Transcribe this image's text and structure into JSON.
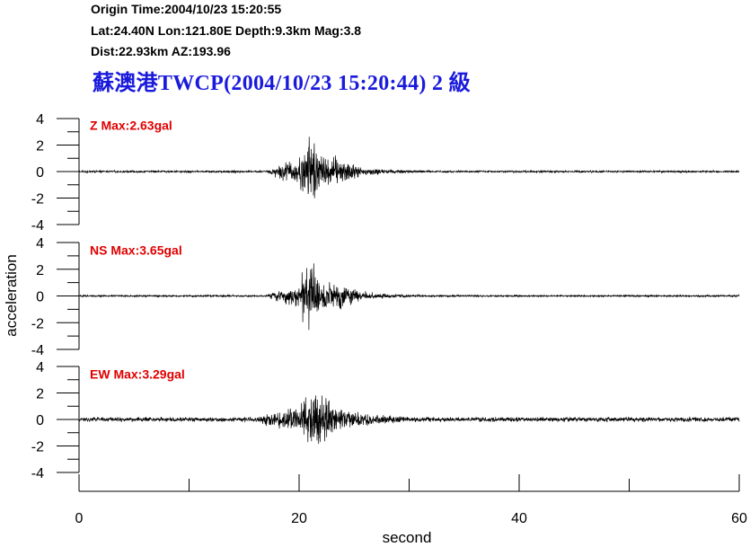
{
  "header": {
    "origin_line": "Origin Time:2004/10/23 15:20:55",
    "location_line": "Lat:24.40N  Lon:121.80E  Depth:9.3km  Mag:3.8",
    "dist_line": "Dist:22.93km  AZ:193.96",
    "station_title": "蘇澳港TWCP(2004/10/23 15:20:44)  2 級"
  },
  "chart_data": {
    "type": "line",
    "xlabel": "second",
    "ylabel": "acceleration",
    "xlim": [
      0,
      60
    ],
    "x_ticks": [
      "0",
      "20",
      "40",
      "60"
    ],
    "ylim": [
      -4,
      4
    ],
    "y_ticks": [
      "4",
      "2",
      "0",
      "-2",
      "-4"
    ],
    "channels": [
      {
        "name": "Z Max:2.63gal",
        "peak": 2.63,
        "noise": 0.09,
        "bursts": [
          [
            17,
            26,
            1.2
          ],
          [
            20,
            22,
            1.9
          ]
        ]
      },
      {
        "name": "NS Max:3.65gal",
        "peak": 3.65,
        "noise": 0.08,
        "bursts": [
          [
            17,
            26,
            1.0
          ],
          [
            20,
            22,
            2.2
          ]
        ]
      },
      {
        "name": "EW Max:3.29gal",
        "peak": 3.29,
        "noise": 0.22,
        "bursts": [
          [
            16,
            26,
            0.9
          ],
          [
            20,
            23,
            1.9
          ]
        ]
      }
    ]
  }
}
